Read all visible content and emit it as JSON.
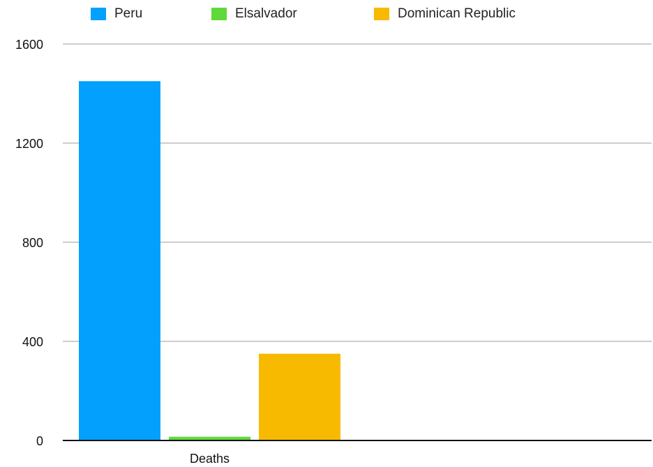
{
  "chart_data": {
    "type": "bar",
    "categories": [
      "Deaths"
    ],
    "series": [
      {
        "name": "Peru",
        "values": [
          1450
        ],
        "color": "#03A1FD"
      },
      {
        "name": "Elsalvador",
        "values": [
          15
        ],
        "color": "#5FD93A"
      },
      {
        "name": "Dominican Republic",
        "values": [
          350
        ],
        "color": "#F7BA00"
      }
    ],
    "yticks": [
      0,
      400,
      800,
      1200,
      1600
    ],
    "ylim": [
      0,
      1600
    ],
    "grid": true,
    "legend_position": "top",
    "title": "",
    "xlabel": "",
    "ylabel": ""
  }
}
